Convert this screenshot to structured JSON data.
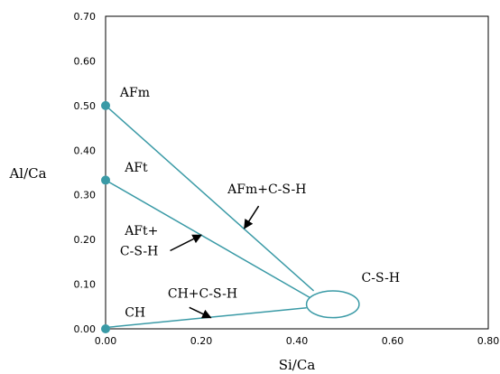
{
  "chart_data": {
    "type": "scatter",
    "title": "",
    "xlabel": "Si/Ca",
    "ylabel": "Al/Ca",
    "xlim": [
      0,
      0.8
    ],
    "ylim": [
      0,
      0.7
    ],
    "xticks": [
      0,
      0.2,
      0.4,
      0.6,
      0.8
    ],
    "xtick_labels": [
      "0.00",
      "0.20",
      "0.40",
      "0.60",
      "0.80"
    ],
    "yticks": [
      0,
      0.1,
      0.2,
      0.3,
      0.4,
      0.5,
      0.6,
      0.7
    ],
    "ytick_labels": [
      "0.00",
      "0.10",
      "0.20",
      "0.30",
      "0.40",
      "0.50",
      "0.60",
      "0.70"
    ],
    "grid": false,
    "accent_color": "#3a9aa6",
    "points": [
      {
        "name": "AFm",
        "x": 0,
        "y": 0.5
      },
      {
        "name": "AFt",
        "x": 0,
        "y": 0.333
      },
      {
        "name": "CH",
        "x": 0,
        "y": 0
      }
    ],
    "csh_region": {
      "name": "C-S-H",
      "x_range": [
        0.42,
        0.53
      ],
      "y_range": [
        0.025,
        0.085
      ]
    },
    "tie_lines": [
      {
        "from": [
          0,
          0.5
        ],
        "to": [
          0.435,
          0.085
        ]
      },
      {
        "from": [
          0,
          0.333
        ],
        "to": [
          0.44,
          0.062
        ]
      },
      {
        "from": [
          0,
          0.003
        ],
        "to": [
          0.42,
          0.047
        ]
      }
    ],
    "annotations": [
      {
        "text": "AFm",
        "x": 0.03,
        "y": 0.52
      },
      {
        "text": "AFt",
        "x": 0.04,
        "y": 0.352
      },
      {
        "text": "CH",
        "x": 0.04,
        "y": 0.027
      },
      {
        "text": "C-S-H",
        "x": 0.535,
        "y": 0.105
      },
      {
        "text": "AFm+C-S-H",
        "x": 0.255,
        "y": 0.303
      },
      {
        "text": "AFt+",
        "x": 0.04,
        "y": 0.21
      },
      {
        "text": "C-S-H",
        "x": 0.03,
        "y": 0.165
      },
      {
        "text": "CH+C-S-H",
        "x": 0.13,
        "y": 0.07
      }
    ],
    "arrows": [
      {
        "label": "AFm+C-S-H",
        "from": [
          0.32,
          0.275
        ],
        "to": [
          0.29,
          0.225
        ]
      },
      {
        "label": "AFt+ C-S-H",
        "from": [
          0.135,
          0.175
        ],
        "to": [
          0.2,
          0.21
        ]
      },
      {
        "label": "CH+C-S-H",
        "from": [
          0.175,
          0.048
        ],
        "to": [
          0.22,
          0.025
        ]
      }
    ]
  }
}
